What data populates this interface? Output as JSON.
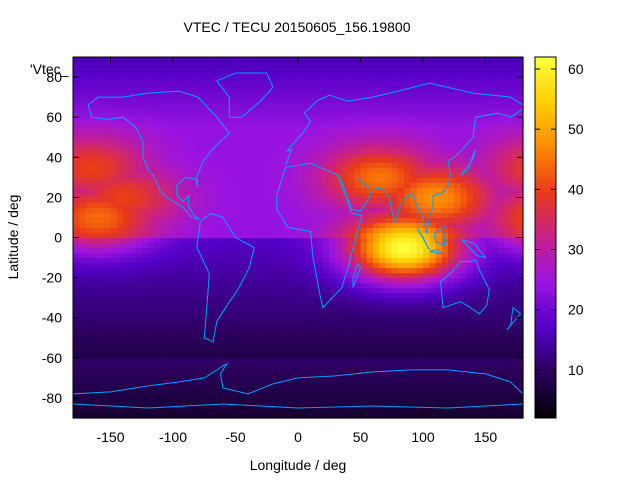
{
  "chart_data": {
    "type": "heatmap",
    "title": "VTEC / TECU 20150605_156.19800",
    "xlabel": "Longitude / deg",
    "ylabel": "Latitude / deg",
    "legend_label": "'Vtec_",
    "xlim": [
      -180,
      180
    ],
    "ylim": [
      -90,
      90
    ],
    "x_ticks": [
      -150,
      -100,
      -50,
      0,
      50,
      100,
      150
    ],
    "y_ticks": [
      -80,
      -60,
      -40,
      -20,
      0,
      20,
      40,
      60,
      80
    ],
    "colorbar": {
      "range": [
        2,
        62
      ],
      "ticks": [
        10,
        20,
        30,
        40,
        50,
        60
      ]
    },
    "palette_stops": [
      "#000000",
      "#2a005a",
      "#5500c8",
      "#9a14e0",
      "#c8208a",
      "#e83a1a",
      "#ff8a00",
      "#ffd000",
      "#ffff40"
    ],
    "overlay_color": "#00a0ff",
    "features": {
      "peaks": [
        {
          "lon": 85,
          "lat": -5,
          "value": 62
        },
        {
          "lon": 110,
          "lat": 20,
          "value": 48
        },
        {
          "lon": 65,
          "lat": 30,
          "value": 45
        },
        {
          "lon": -160,
          "lat": 10,
          "value": 44
        },
        {
          "lon": -165,
          "lat": 35,
          "value": 40
        },
        {
          "lon": -140,
          "lat": 20,
          "value": 40
        }
      ],
      "background_north": 24,
      "background_south": 14,
      "background_polar_south": 6
    }
  }
}
